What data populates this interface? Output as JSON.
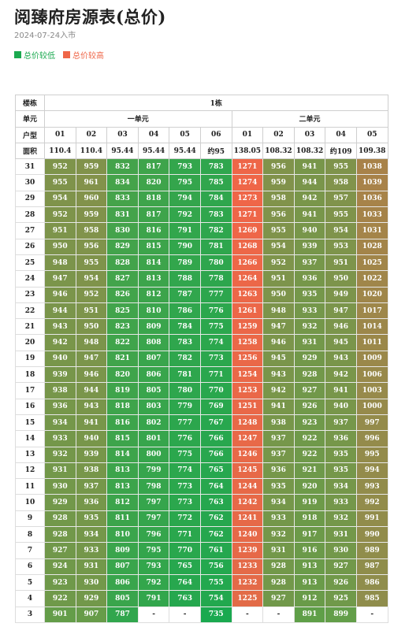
{
  "title": "阅臻府房源表(总价)",
  "date": "2024-07-24入市",
  "legend": {
    "low_label": "总价较低",
    "high_label": "总价较高",
    "low_color": "#1aa94f",
    "high_color": "#ef6648"
  },
  "header": {
    "building_label": "楼栋",
    "building": "1栋",
    "unit_label": "单元",
    "unit1": "一单元",
    "unit2": "二单元",
    "room_label": "户型",
    "rooms": [
      "01",
      "02",
      "03",
      "04",
      "05",
      "06",
      "01",
      "02",
      "03",
      "04",
      "05"
    ],
    "area_label": "面积",
    "areas": [
      "110.4",
      "110.4",
      "95.44",
      "95.44",
      "95.44",
      "约95",
      "138.05",
      "108.32",
      "108.32",
      "约109",
      "109.38"
    ]
  },
  "rows": [
    {
      "floor": "31",
      "values": [
        "952",
        "959",
        "832",
        "817",
        "793",
        "783",
        "1271",
        "956",
        "941",
        "955",
        "1038"
      ]
    },
    {
      "floor": "30",
      "values": [
        "955",
        "961",
        "834",
        "820",
        "795",
        "785",
        "1274",
        "959",
        "944",
        "958",
        "1039"
      ]
    },
    {
      "floor": "29",
      "values": [
        "954",
        "960",
        "833",
        "818",
        "794",
        "784",
        "1273",
        "958",
        "942",
        "957",
        "1036"
      ]
    },
    {
      "floor": "28",
      "values": [
        "952",
        "959",
        "831",
        "817",
        "792",
        "783",
        "1271",
        "956",
        "941",
        "955",
        "1033"
      ]
    },
    {
      "floor": "27",
      "values": [
        "951",
        "958",
        "830",
        "816",
        "791",
        "782",
        "1269",
        "955",
        "940",
        "954",
        "1031"
      ]
    },
    {
      "floor": "26",
      "values": [
        "950",
        "956",
        "829",
        "815",
        "790",
        "781",
        "1268",
        "954",
        "939",
        "953",
        "1028"
      ]
    },
    {
      "floor": "25",
      "values": [
        "948",
        "955",
        "828",
        "814",
        "789",
        "780",
        "1266",
        "952",
        "937",
        "951",
        "1025"
      ]
    },
    {
      "floor": "24",
      "values": [
        "947",
        "954",
        "827",
        "813",
        "788",
        "778",
        "1264",
        "951",
        "936",
        "950",
        "1022"
      ]
    },
    {
      "floor": "23",
      "values": [
        "946",
        "952",
        "826",
        "812",
        "787",
        "777",
        "1263",
        "950",
        "935",
        "949",
        "1020"
      ]
    },
    {
      "floor": "22",
      "values": [
        "944",
        "951",
        "825",
        "810",
        "786",
        "776",
        "1261",
        "948",
        "933",
        "947",
        "1017"
      ]
    },
    {
      "floor": "21",
      "values": [
        "943",
        "950",
        "823",
        "809",
        "784",
        "775",
        "1259",
        "947",
        "932",
        "946",
        "1014"
      ]
    },
    {
      "floor": "20",
      "values": [
        "942",
        "948",
        "822",
        "808",
        "783",
        "774",
        "1258",
        "946",
        "931",
        "945",
        "1011"
      ]
    },
    {
      "floor": "19",
      "values": [
        "940",
        "947",
        "821",
        "807",
        "782",
        "773",
        "1256",
        "945",
        "929",
        "943",
        "1009"
      ]
    },
    {
      "floor": "18",
      "values": [
        "939",
        "946",
        "820",
        "806",
        "781",
        "771",
        "1254",
        "943",
        "928",
        "942",
        "1006"
      ]
    },
    {
      "floor": "17",
      "values": [
        "938",
        "944",
        "819",
        "805",
        "780",
        "770",
        "1253",
        "942",
        "927",
        "941",
        "1003"
      ]
    },
    {
      "floor": "16",
      "values": [
        "936",
        "943",
        "818",
        "803",
        "779",
        "769",
        "1251",
        "941",
        "926",
        "940",
        "1000"
      ]
    },
    {
      "floor": "15",
      "values": [
        "934",
        "941",
        "816",
        "802",
        "777",
        "767",
        "1248",
        "938",
        "923",
        "937",
        "997"
      ]
    },
    {
      "floor": "14",
      "values": [
        "933",
        "940",
        "815",
        "801",
        "776",
        "766",
        "1247",
        "937",
        "922",
        "936",
        "996"
      ]
    },
    {
      "floor": "13",
      "values": [
        "932",
        "939",
        "814",
        "800",
        "775",
        "766",
        "1246",
        "937",
        "922",
        "935",
        "995"
      ]
    },
    {
      "floor": "12",
      "values": [
        "931",
        "938",
        "813",
        "799",
        "774",
        "765",
        "1245",
        "936",
        "921",
        "935",
        "994"
      ]
    },
    {
      "floor": "11",
      "values": [
        "930",
        "937",
        "813",
        "798",
        "773",
        "764",
        "1244",
        "935",
        "920",
        "934",
        "993"
      ]
    },
    {
      "floor": "10",
      "values": [
        "929",
        "936",
        "812",
        "797",
        "773",
        "763",
        "1242",
        "934",
        "919",
        "933",
        "992"
      ]
    },
    {
      "floor": "9",
      "values": [
        "928",
        "935",
        "811",
        "797",
        "772",
        "762",
        "1241",
        "933",
        "918",
        "932",
        "991"
      ]
    },
    {
      "floor": "8",
      "values": [
        "928",
        "934",
        "810",
        "796",
        "771",
        "762",
        "1240",
        "932",
        "917",
        "931",
        "990"
      ]
    },
    {
      "floor": "7",
      "values": [
        "927",
        "933",
        "809",
        "795",
        "770",
        "761",
        "1239",
        "931",
        "916",
        "930",
        "989"
      ]
    },
    {
      "floor": "6",
      "values": [
        "924",
        "931",
        "807",
        "793",
        "765",
        "756",
        "1233",
        "928",
        "913",
        "927",
        "987"
      ]
    },
    {
      "floor": "5",
      "values": [
        "923",
        "930",
        "806",
        "792",
        "764",
        "755",
        "1232",
        "928",
        "913",
        "926",
        "986"
      ]
    },
    {
      "floor": "4",
      "values": [
        "922",
        "929",
        "805",
        "791",
        "763",
        "754",
        "1225",
        "927",
        "912",
        "925",
        "985"
      ]
    },
    {
      "floor": "3",
      "values": [
        "901",
        "907",
        "787",
        "-",
        "-",
        "735",
        "-",
        "-",
        "891",
        "899",
        "-"
      ]
    }
  ]
}
